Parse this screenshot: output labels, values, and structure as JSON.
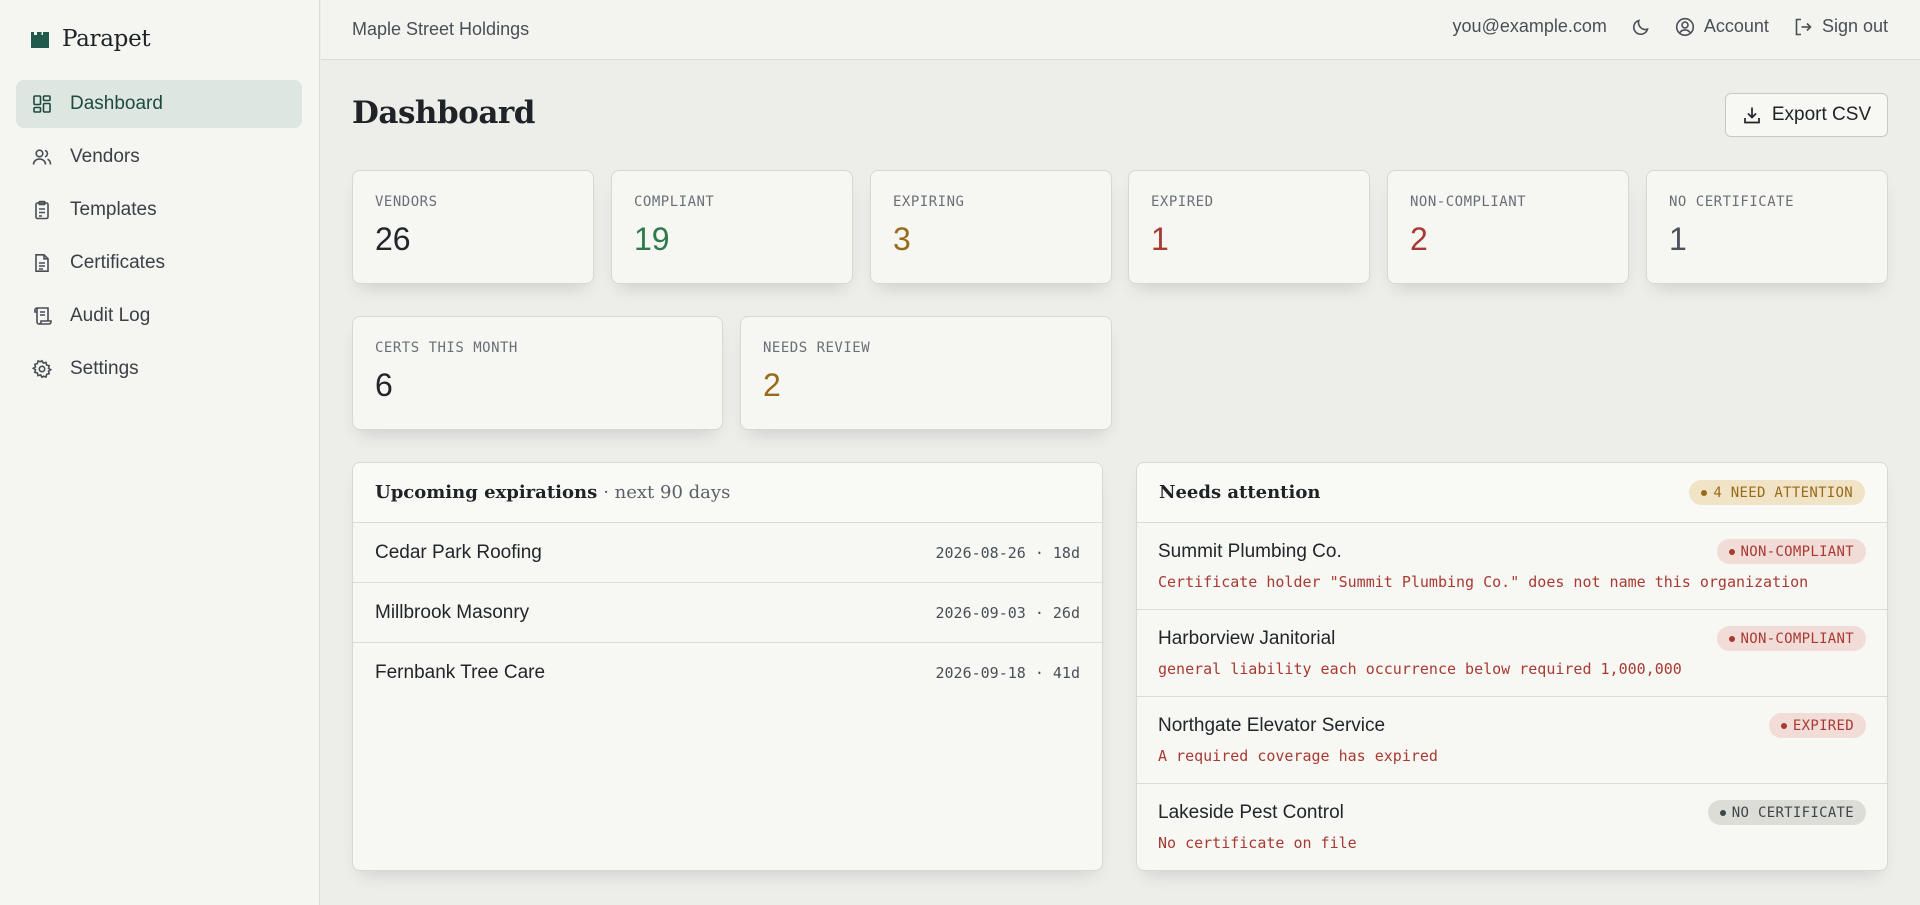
{
  "brand": {
    "name": "Parapet",
    "icon": "castle-icon"
  },
  "sidebar": {
    "items": [
      {
        "label": "Dashboard",
        "icon": "dashboard-icon",
        "active": true
      },
      {
        "label": "Vendors",
        "icon": "users-icon",
        "active": false
      },
      {
        "label": "Templates",
        "icon": "clipboard-icon",
        "active": false
      },
      {
        "label": "Certificates",
        "icon": "document-icon",
        "active": false
      },
      {
        "label": "Audit Log",
        "icon": "scroll-icon",
        "active": false
      },
      {
        "label": "Settings",
        "icon": "gear-icon",
        "active": false
      }
    ]
  },
  "topbar": {
    "org": "Maple Street Holdings",
    "email": "you@example.com",
    "account_label": "Account",
    "signout_label": "Sign out"
  },
  "page": {
    "title": "Dashboard",
    "export_label": "Export CSV"
  },
  "stats": [
    {
      "label": "VENDORS",
      "value": "26",
      "color": "#22262b"
    },
    {
      "label": "COMPLIANT",
      "value": "19",
      "color": "#2f7a4c"
    },
    {
      "label": "EXPIRING",
      "value": "3",
      "color": "#9a6a1c"
    },
    {
      "label": "EXPIRED",
      "value": "1",
      "color": "#a83a32"
    },
    {
      "label": "NON-COMPLIANT",
      "value": "2",
      "color": "#a83a32"
    },
    {
      "label": "NO CERTIFICATE",
      "value": "1",
      "color": "#4b525c"
    },
    {
      "label": "CERTS THIS MONTH",
      "value": "6",
      "color": "#22262b"
    },
    {
      "label": "NEEDS REVIEW",
      "value": "2",
      "color": "#9a6a1c"
    }
  ],
  "upcoming": {
    "title": "Upcoming expirations",
    "subtitle": "· next 90 days",
    "rows": [
      {
        "name": "Cedar Park Roofing",
        "meta": "2026-08-26 · 18d"
      },
      {
        "name": "Millbrook Masonry",
        "meta": "2026-09-03 · 26d"
      },
      {
        "name": "Fernbank Tree Care",
        "meta": "2026-09-18 · 41d"
      }
    ]
  },
  "attention": {
    "title": "Needs attention",
    "badge": "4 NEED ATTENTION",
    "rows": [
      {
        "name": "Summit Plumbing Co.",
        "status": "NON-COMPLIANT",
        "message": "Certificate holder \"Summit Plumbing Co.\" does not name this organization"
      },
      {
        "name": "Harborview Janitorial",
        "status": "NON-COMPLIANT",
        "message": "general liability each occurrence below required 1,000,000"
      },
      {
        "name": "Northgate Elevator Service",
        "status": "EXPIRED",
        "message": "A required coverage has expired"
      },
      {
        "name": "Lakeside Pest Control",
        "status": "NO CERTIFICATE",
        "message": "No certificate on file"
      }
    ]
  }
}
